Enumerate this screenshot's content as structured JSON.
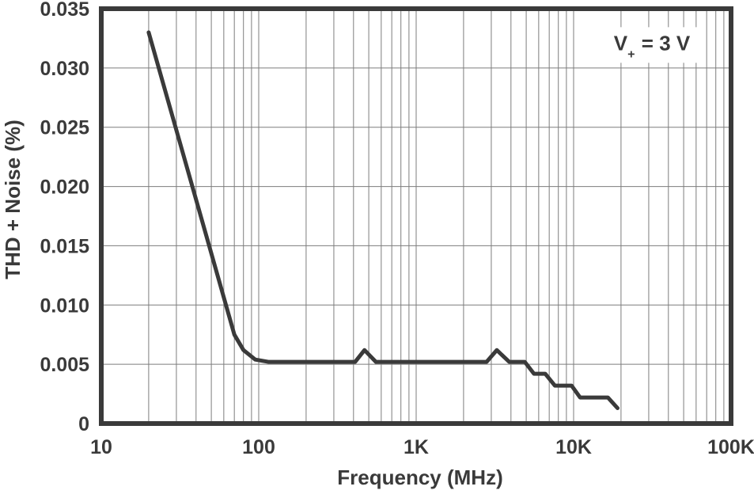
{
  "chart_data": {
    "type": "line",
    "xlabel": "Frequency (MHz)",
    "ylabel": "THD + Noise (%)",
    "x_scale": "log",
    "xlim": [
      10,
      100000
    ],
    "ylim": [
      0,
      0.035
    ],
    "x_ticks": [
      {
        "value": 10,
        "label": "10"
      },
      {
        "value": 100,
        "label": "100"
      },
      {
        "value": 1000,
        "label": "1K"
      },
      {
        "value": 10000,
        "label": "10K"
      },
      {
        "value": 100000,
        "label": "100K"
      }
    ],
    "y_ticks": [
      {
        "value": 0,
        "label": "0"
      },
      {
        "value": 0.005,
        "label": "0.005"
      },
      {
        "value": 0.01,
        "label": "0.010"
      },
      {
        "value": 0.015,
        "label": "0.015"
      },
      {
        "value": 0.02,
        "label": "0.020"
      },
      {
        "value": 0.025,
        "label": "0.025"
      },
      {
        "value": 0.03,
        "label": "0.030"
      },
      {
        "value": 0.035,
        "label": "0.035"
      }
    ],
    "grid": {
      "vertical": "log-minors-and-majors",
      "horizontal": "majors-only"
    },
    "legend": "none",
    "annotation": {
      "prefix": "V",
      "sub": "+",
      "suffix": "= 3 V",
      "full_text": "V+ = 3 V"
    },
    "colors": {
      "ink": "#3a3a3a",
      "grid": "#7d7d7d",
      "background": "#ffffff"
    },
    "series": [
      {
        "name": "THD + Noise",
        "points": [
          [
            20,
            0.033
          ],
          [
            70,
            0.0075
          ],
          [
            80,
            0.0062
          ],
          [
            95,
            0.0054
          ],
          [
            115,
            0.0052
          ],
          [
            410,
            0.0052
          ],
          [
            470,
            0.0062
          ],
          [
            555,
            0.0052
          ],
          [
            2800,
            0.0052
          ],
          [
            3250,
            0.0062
          ],
          [
            3900,
            0.0052
          ],
          [
            4900,
            0.0052
          ],
          [
            5600,
            0.0042
          ],
          [
            6600,
            0.0042
          ],
          [
            7600,
            0.0032
          ],
          [
            9700,
            0.0032
          ],
          [
            11000,
            0.0022
          ],
          [
            16500,
            0.0022
          ],
          [
            19000,
            0.0013
          ]
        ]
      }
    ]
  }
}
